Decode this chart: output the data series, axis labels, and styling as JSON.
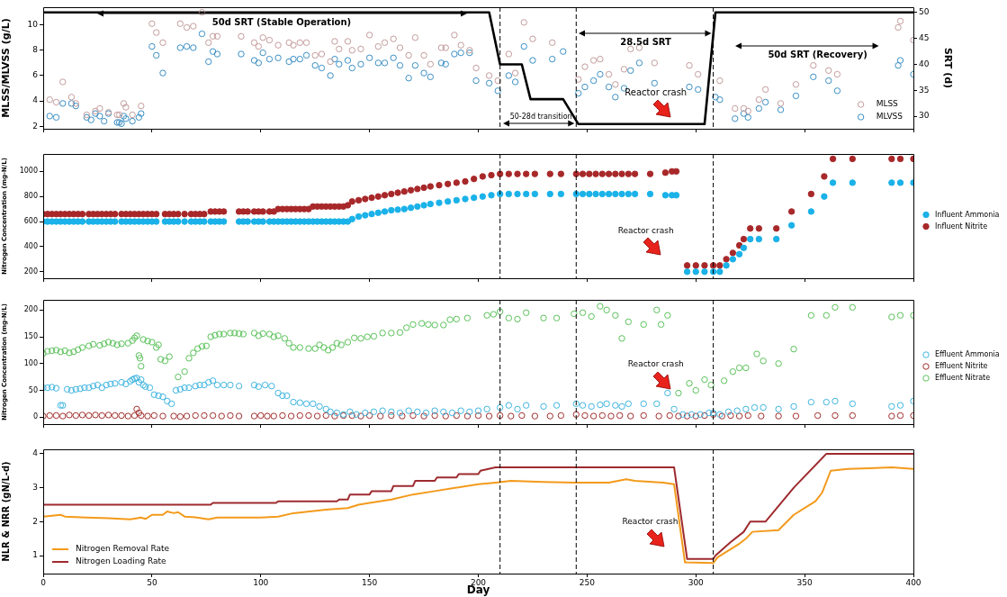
{
  "chart_data": [
    {
      "type": "scatter",
      "ylabel": "MLSS/MLVSS (g/L)",
      "y2label": "SRT (d)",
      "xlim": [
        0,
        400
      ],
      "xticks": [
        0,
        50,
        100,
        150,
        200,
        250,
        300,
        350,
        400
      ],
      "ylim": [
        1.8,
        11.4
      ],
      "yticks": [
        2,
        4,
        6,
        8,
        10
      ],
      "y2lim": [
        27.6,
        51
      ],
      "y2ticks": [
        30,
        35,
        40,
        45,
        50
      ],
      "tick_labels": "y",
      "legend": "bottom right",
      "ref_lines": [
        {
          "axis": "x",
          "value": 210,
          "color": "#000000",
          "line_style": "dashed"
        },
        {
          "axis": "x",
          "value": 245,
          "color": "#000000",
          "line_style": "dashed"
        },
        {
          "axis": "x",
          "value": 308,
          "color": "#000000",
          "line_style": "dashed"
        }
      ],
      "annotations": [
        "50d SRT (Stable Operation)",
        "50-28d transition",
        "28.5d SRT",
        "50d SRT (Recovery)",
        "Reactor crash"
      ],
      "series": [
        {
          "name": "MLSS",
          "marker": "circle",
          "color": "#c49c9c",
          "x": [
            3,
            6,
            9,
            13,
            15,
            20,
            24,
            26,
            30,
            34,
            35,
            37,
            38,
            41,
            45,
            50,
            52,
            55,
            63,
            66,
            69,
            73,
            76,
            78,
            80,
            91,
            97,
            99,
            101,
            104,
            108,
            113,
            115,
            118,
            121,
            125,
            128,
            132,
            134,
            136,
            140,
            142,
            146,
            150,
            154,
            157,
            161,
            164,
            168,
            171,
            175,
            178,
            183,
            185,
            189,
            192,
            196,
            199,
            205,
            209,
            214,
            217,
            221,
            225,
            234,
            246,
            249,
            253,
            256,
            260,
            263,
            267,
            270,
            274,
            281,
            297,
            301,
            311,
            318,
            322,
            324,
            329,
            332,
            339,
            346,
            354,
            361,
            365,
            393,
            394,
            400
          ],
          "values": [
            4.1,
            3.9,
            5.5,
            4.3,
            3.8,
            2.9,
            3.2,
            3.4,
            3.1,
            2.9,
            2.9,
            3.8,
            3.5,
            2.9,
            3.6,
            10.1,
            9.4,
            8.6,
            10.1,
            9.8,
            9.9,
            11.0,
            8.6,
            9.1,
            9.1,
            9.1,
            8.6,
            8.3,
            9.0,
            8.8,
            8.4,
            8.6,
            8.4,
            8.6,
            8.6,
            7.6,
            7.7,
            7.1,
            8.7,
            8.1,
            8.7,
            8.0,
            8.1,
            9.2,
            8.3,
            8.6,
            8.9,
            8.2,
            7.6,
            9.0,
            7.6,
            6.9,
            8.2,
            8.2,
            9.2,
            8.4,
            8.0,
            6.6,
            6.0,
            5.6,
            7.7,
            6.2,
            10.2,
            8.9,
            8.6,
            5.7,
            6.7,
            7.2,
            7.3,
            6.1,
            5.3,
            6.5,
            8.1,
            8.2,
            7.0,
            6.8,
            6.1,
            5.6,
            3.4,
            3.4,
            3.2,
            4.1,
            4.9,
            3.8,
            5.3,
            6.8,
            6.4,
            6.1,
            9.8,
            10.3,
            8.8
          ]
        },
        {
          "name": "MLVSS",
          "marker": "circle",
          "color": "#3b8fc4",
          "x": [
            3,
            6,
            9,
            13,
            15,
            20,
            22,
            24,
            26,
            28,
            30,
            34,
            35,
            36,
            37,
            38,
            41,
            44,
            45,
            50,
            52,
            55,
            63,
            66,
            69,
            73,
            76,
            78,
            80,
            91,
            97,
            99,
            101,
            104,
            108,
            113,
            115,
            118,
            121,
            125,
            128,
            132,
            134,
            136,
            140,
            142,
            146,
            150,
            154,
            157,
            161,
            164,
            168,
            171,
            175,
            178,
            183,
            185,
            189,
            192,
            196,
            199,
            205,
            209,
            214,
            217,
            221,
            225,
            234,
            239,
            246,
            249,
            253,
            256,
            260,
            263,
            267,
            270,
            274,
            281,
            297,
            301,
            309,
            311,
            318,
            322,
            324,
            329,
            332,
            339,
            346,
            354,
            361,
            365,
            393,
            394,
            400
          ],
          "values": [
            2.8,
            2.7,
            3.8,
            3.8,
            3.6,
            2.7,
            2.5,
            3.0,
            2.8,
            2.4,
            3.0,
            2.3,
            2.3,
            2.2,
            2.8,
            2.6,
            2.4,
            2.7,
            3.0,
            8.3,
            7.6,
            6.2,
            8.2,
            8.3,
            8.2,
            9.3,
            7.1,
            7.9,
            7.7,
            7.7,
            7.2,
            7.0,
            7.8,
            7.3,
            7.4,
            7.1,
            7.3,
            7.3,
            7.6,
            6.8,
            6.6,
            6.0,
            7.3,
            6.9,
            7.2,
            6.6,
            6.9,
            7.4,
            7.0,
            7.0,
            7.4,
            6.8,
            5.8,
            6.8,
            6.2,
            5.9,
            7.0,
            6.9,
            7.7,
            7.8,
            7.8,
            5.6,
            5.4,
            4.8,
            6.0,
            5.5,
            8.3,
            7.2,
            7.3,
            7.9,
            4.6,
            5.1,
            5.6,
            6.1,
            5.1,
            4.3,
            5.0,
            6.4,
            7.0,
            5.4,
            5.1,
            4.9,
            4.3,
            4.1,
            2.6,
            3.0,
            2.7,
            3.4,
            3.9,
            3.3,
            4.4,
            5.9,
            5.6,
            4.8,
            6.8,
            7.2,
            6.1
          ]
        },
        {
          "type": "line",
          "axis": "y2",
          "color": "#000000",
          "x": [
            0,
            205,
            210,
            220,
            224,
            239,
            246,
            304,
            309,
            400
          ],
          "values": [
            50,
            50,
            40,
            40,
            33.3,
            33.3,
            28.5,
            28.5,
            50,
            50
          ]
        }
      ]
    },
    {
      "type": "scatter",
      "ylabel": "Nitrogen Concentration (mg-N/L)",
      "xlim": [
        0,
        400
      ],
      "xticks": [
        0,
        50,
        100,
        150,
        200,
        250,
        300,
        350,
        400
      ],
      "ylim": [
        148,
        1139
      ],
      "yticks": [
        200,
        400,
        600,
        800,
        1000
      ],
      "tick_labels": "y",
      "legend": "right",
      "ref_lines": [
        {
          "axis": "x",
          "value": 210,
          "color": "#000000",
          "line_style": "dashed"
        },
        {
          "axis": "x",
          "value": 245,
          "color": "#000000",
          "line_style": "dashed"
        },
        {
          "axis": "x",
          "value": 308,
          "color": "#000000",
          "line_style": "dashed"
        }
      ],
      "annotations": [
        "Reactor crash"
      ],
      "series": [
        {
          "name": "Influent Ammonia",
          "marker": "circle",
          "color": "#1ab2e8",
          "x": [
            0,
            2,
            4,
            6,
            8,
            10,
            12,
            14,
            16,
            18,
            21,
            23,
            25,
            27,
            29,
            31,
            33,
            36,
            38,
            40,
            42,
            44,
            46,
            48,
            50,
            52,
            56,
            58,
            60,
            62,
            65,
            68,
            70,
            72,
            74,
            77,
            79,
            81,
            83,
            90,
            92,
            94,
            97,
            99,
            101,
            104,
            106,
            108,
            110,
            112,
            114,
            116,
            118,
            120,
            122,
            124,
            126,
            128,
            130,
            132,
            134,
            136,
            138,
            140,
            142,
            145,
            148,
            151,
            154,
            157,
            160,
            163,
            166,
            169,
            172,
            175,
            178,
            182,
            186,
            190,
            194,
            198,
            202,
            206,
            210,
            214,
            218,
            222,
            226,
            233,
            238,
            245,
            248,
            251,
            254,
            257,
            260,
            263,
            266,
            269,
            272,
            279,
            286,
            289,
            291,
            296,
            300,
            304,
            308,
            311,
            314,
            317,
            320,
            322,
            325,
            329,
            337,
            344,
            353,
            359,
            363,
            372,
            390,
            394,
            400
          ],
          "values": [
            600,
            600,
            600,
            600,
            600,
            600,
            600,
            600,
            600,
            600,
            600,
            600,
            600,
            600,
            600,
            600,
            600,
            600,
            600,
            600,
            600,
            600,
            600,
            600,
            600,
            600,
            600,
            600,
            600,
            600,
            600,
            600,
            600,
            600,
            600,
            600,
            600,
            600,
            600,
            600,
            600,
            600,
            600,
            600,
            600,
            600,
            600,
            600,
            600,
            600,
            600,
            600,
            600,
            600,
            600,
            600,
            600,
            600,
            600,
            600,
            600,
            600,
            600,
            600,
            620,
            640,
            650,
            660,
            670,
            680,
            690,
            695,
            700,
            710,
            720,
            730,
            740,
            750,
            760,
            770,
            780,
            790,
            800,
            810,
            820,
            820,
            820,
            820,
            820,
            820,
            820,
            820,
            820,
            820,
            820,
            820,
            820,
            820,
            820,
            820,
            820,
            820,
            810,
            810,
            810,
            200,
            200,
            200,
            200,
            200,
            250,
            300,
            340,
            390,
            460,
            460,
            460,
            570,
            680,
            800,
            910,
            910,
            910,
            910,
            910
          ]
        },
        {
          "name": "Influent Nitrite",
          "marker": "circle",
          "color": "#a8282a",
          "x": [
            0,
            2,
            4,
            6,
            8,
            10,
            12,
            14,
            16,
            18,
            21,
            23,
            25,
            27,
            29,
            31,
            33,
            36,
            38,
            40,
            42,
            44,
            46,
            48,
            50,
            52,
            56,
            58,
            60,
            62,
            65,
            68,
            70,
            72,
            74,
            77,
            79,
            81,
            83,
            90,
            92,
            94,
            97,
            99,
            101,
            104,
            106,
            108,
            110,
            112,
            114,
            116,
            118,
            120,
            122,
            124,
            126,
            128,
            130,
            132,
            134,
            136,
            138,
            140,
            142,
            145,
            148,
            151,
            154,
            157,
            160,
            163,
            166,
            169,
            172,
            175,
            178,
            182,
            186,
            190,
            194,
            198,
            202,
            206,
            210,
            214,
            218,
            222,
            226,
            233,
            238,
            245,
            248,
            251,
            254,
            257,
            260,
            263,
            266,
            269,
            272,
            279,
            286,
            289,
            291,
            296,
            300,
            304,
            308,
            311,
            314,
            317,
            320,
            322,
            325,
            329,
            337,
            344,
            353,
            359,
            363,
            372,
            390,
            394,
            400
          ],
          "values": [
            660,
            660,
            660,
            660,
            660,
            660,
            660,
            660,
            660,
            660,
            660,
            660,
            660,
            660,
            660,
            660,
            660,
            660,
            660,
            660,
            660,
            660,
            660,
            660,
            660,
            660,
            660,
            660,
            660,
            660,
            660,
            660,
            660,
            660,
            660,
            680,
            680,
            680,
            680,
            680,
            680,
            680,
            680,
            680,
            680,
            680,
            680,
            700,
            700,
            700,
            700,
            700,
            700,
            700,
            700,
            720,
            720,
            720,
            720,
            720,
            720,
            720,
            720,
            730,
            760,
            770,
            780,
            790,
            800,
            810,
            820,
            830,
            840,
            850,
            860,
            870,
            880,
            890,
            900,
            910,
            920,
            940,
            960,
            970,
            980,
            980,
            980,
            980,
            980,
            980,
            980,
            980,
            980,
            980,
            980,
            980,
            980,
            980,
            980,
            980,
            980,
            980,
            990,
            1000,
            1000,
            250,
            250,
            250,
            250,
            250,
            300,
            350,
            410,
            460,
            545,
            545,
            545,
            680,
            820,
            960,
            1100,
            1100,
            1100,
            1100,
            1100
          ]
        }
      ]
    },
    {
      "type": "scatter",
      "ylabel": "Nitrogen Concentration (mg-N/L)",
      "xlim": [
        0,
        400
      ],
      "xticks": [
        0,
        50,
        100,
        150,
        200,
        250,
        300,
        350,
        400
      ],
      "ylim": [
        -13,
        219
      ],
      "yticks": [
        0,
        50,
        100,
        150,
        200
      ],
      "tick_labels": "y",
      "legend": "right",
      "ref_lines": [
        {
          "axis": "x",
          "value": 210,
          "color": "#000000",
          "line_style": "dashed"
        },
        {
          "axis": "x",
          "value": 245,
          "color": "#000000",
          "line_style": "dashed"
        },
        {
          "axis": "x",
          "value": 308,
          "color": "#000000",
          "line_style": "dashed"
        }
      ],
      "annotations": [
        "Reactor crash"
      ],
      "series": [
        {
          "name": "Effluent Ammonia",
          "marker": "circle",
          "color": "#3fb5e0",
          "x": [
            0,
            2,
            4,
            6,
            8,
            9,
            11,
            13,
            15,
            17,
            19,
            21,
            23,
            25,
            27,
            29,
            31,
            33,
            36,
            38,
            40,
            41,
            42,
            43,
            44,
            45,
            46,
            47,
            49,
            51,
            53,
            55,
            57,
            59,
            61,
            63,
            65,
            67,
            70,
            72,
            74,
            76,
            78,
            80,
            83,
            86,
            90,
            97,
            99,
            102,
            105,
            108,
            110,
            112,
            115,
            118,
            121,
            124,
            127,
            130,
            132,
            135,
            138,
            141,
            144,
            148,
            152,
            156,
            160,
            164,
            168,
            172,
            176,
            180,
            184,
            188,
            192,
            196,
            200,
            204,
            210,
            214,
            218,
            222,
            230,
            236,
            245,
            248,
            252,
            256,
            259,
            263,
            266,
            269,
            276,
            282,
            287,
            290,
            294,
            298,
            302,
            306,
            308,
            311,
            315,
            319,
            323,
            327,
            331,
            338,
            345,
            353,
            360,
            364,
            372,
            390,
            394,
            400
          ],
          "values": [
            55,
            55,
            56,
            54,
            22,
            22,
            52,
            50,
            52,
            53,
            55,
            55,
            58,
            60,
            55,
            60,
            62,
            63,
            65,
            62,
            67,
            70,
            72,
            73,
            65,
            70,
            60,
            57,
            55,
            42,
            40,
            38,
            30,
            25,
            50,
            52,
            55,
            55,
            58,
            60,
            60,
            65,
            68,
            60,
            60,
            60,
            58,
            60,
            57,
            60,
            58,
            45,
            40,
            40,
            28,
            27,
            25,
            25,
            20,
            15,
            10,
            8,
            5,
            10,
            5,
            8,
            10,
            12,
            10,
            8,
            12,
            10,
            8,
            12,
            10,
            8,
            12,
            10,
            12,
            15,
            18,
            22,
            15,
            22,
            20,
            22,
            25,
            22,
            20,
            23,
            25,
            22,
            20,
            25,
            25,
            25,
            45,
            15,
            5,
            5,
            5,
            8,
            8,
            5,
            10,
            12,
            15,
            18,
            18,
            15,
            20,
            28,
            28,
            30,
            25,
            20,
            22,
            30
          ]
        },
        {
          "name": "Effluent Nitrite",
          "marker": "circle",
          "color": "#a0302e",
          "x": [
            0,
            3,
            6,
            9,
            12,
            15,
            18,
            21,
            24,
            27,
            30,
            33,
            36,
            39,
            42,
            43,
            44,
            45,
            48,
            51,
            55,
            60,
            63,
            66,
            70,
            74,
            78,
            82,
            86,
            90,
            97,
            100,
            103,
            106,
            110,
            114,
            118,
            122,
            126,
            130,
            134,
            138,
            142,
            146,
            150,
            155,
            160,
            165,
            170,
            175,
            180,
            185,
            190,
            195,
            200,
            205,
            210,
            215,
            220,
            226,
            233,
            238,
            245,
            249,
            253,
            257,
            261,
            265,
            270,
            276,
            283,
            288,
            292,
            296,
            300,
            304,
            308,
            312,
            316,
            320,
            324,
            330,
            338,
            346,
            356,
            364,
            372,
            390,
            394,
            400
          ],
          "values": [
            2,
            3,
            3,
            2,
            4,
            3,
            4,
            3,
            4,
            3,
            4,
            3,
            3,
            2,
            3,
            15,
            8,
            3,
            2,
            3,
            2,
            2,
            1,
            2,
            3,
            3,
            3,
            2,
            3,
            2,
            2,
            3,
            2,
            2,
            3,
            2,
            3,
            3,
            2,
            3,
            2,
            3,
            3,
            2,
            3,
            2,
            3,
            2,
            3,
            2,
            3,
            2,
            3,
            2,
            3,
            2,
            3,
            2,
            3,
            2,
            2,
            3,
            5,
            3,
            2,
            3,
            2,
            3,
            2,
            3,
            2,
            3,
            2,
            2,
            2,
            3,
            5,
            2,
            3,
            2,
            3,
            2,
            2,
            2,
            3,
            3,
            3,
            2,
            3,
            3
          ]
        },
        {
          "name": "Effluent Nitrate",
          "marker": "circle",
          "color": "#5bc25b",
          "x": [
            0,
            2,
            4,
            6,
            8,
            10,
            12,
            14,
            16,
            18,
            21,
            23,
            26,
            28,
            30,
            32,
            34,
            36,
            39,
            41,
            42,
            43,
            44,
            44.5,
            45,
            46,
            48,
            50,
            52,
            53,
            54,
            56,
            58,
            62,
            65,
            67,
            69,
            71,
            73,
            75,
            77,
            79,
            81,
            83,
            86,
            88,
            90,
            92,
            97,
            99,
            101,
            104,
            106,
            108,
            111,
            113,
            115,
            118,
            122,
            125,
            127,
            129,
            131,
            133,
            135,
            137,
            140,
            143,
            146,
            149,
            152,
            156,
            160,
            164,
            167,
            170,
            174,
            177,
            180,
            184,
            187,
            190,
            195,
            204,
            207,
            210,
            214,
            218,
            222,
            230,
            236,
            244,
            248,
            252,
            256,
            259,
            263,
            266,
            269,
            276,
            282,
            284,
            287,
            292,
            297,
            300,
            304,
            307,
            313,
            317,
            320,
            323,
            328,
            331,
            338,
            345,
            353,
            360,
            364,
            372,
            390,
            394,
            400
          ],
          "values": [
            119,
            123,
            124,
            125,
            122,
            124,
            120,
            122,
            126,
            130,
            133,
            136,
            134,
            137,
            140,
            138,
            135,
            137,
            138,
            143,
            148,
            152,
            115,
            110,
            95,
            145,
            142,
            140,
            130,
            135,
            108,
            105,
            113,
            75,
            85,
            110,
            120,
            128,
            132,
            133,
            150,
            153,
            155,
            155,
            157,
            157,
            156,
            155,
            157,
            152,
            156,
            155,
            150,
            152,
            147,
            138,
            130,
            130,
            128,
            128,
            135,
            130,
            125,
            130,
            138,
            135,
            140,
            148,
            147,
            150,
            151,
            157,
            157,
            158,
            167,
            173,
            175,
            173,
            172,
            172,
            182,
            183,
            185,
            190,
            192,
            197,
            185,
            183,
            195,
            185,
            185,
            193,
            195,
            188,
            207,
            200,
            190,
            147,
            178,
            173,
            200,
            173,
            190,
            45,
            63,
            50,
            70,
            60,
            68,
            85,
            92,
            92,
            118,
            105,
            100,
            127,
            190,
            190,
            205,
            205,
            187,
            190,
            190
          ]
        }
      ]
    },
    {
      "type": "line",
      "xlabel": "Day",
      "ylabel": "NLR & NRR (gN/L-d)",
      "xlim": [
        0,
        400
      ],
      "xticks": [
        0,
        50,
        100,
        150,
        200,
        250,
        300,
        350,
        400
      ],
      "ylim": [
        0.47,
        4.13
      ],
      "yticks": [
        1,
        2,
        3,
        4
      ],
      "legend": "bottom left",
      "ref_lines": [
        {
          "axis": "x",
          "value": 210,
          "color": "#000000",
          "line_style": "dashed"
        },
        {
          "axis": "x",
          "value": 245,
          "color": "#000000",
          "line_style": "dashed"
        },
        {
          "axis": "x",
          "value": 308,
          "color": "#000000",
          "line_style": "dashed"
        }
      ],
      "annotations": [
        "Reactor crash"
      ],
      "series": [
        {
          "name": "Nitrogen Removal Rate",
          "color": "#f39a1b",
          "x": [
            0,
            8,
            10,
            20,
            30,
            40,
            45,
            47,
            50,
            55,
            57,
            60,
            62,
            65,
            70,
            76,
            80,
            100,
            108,
            115,
            130,
            140,
            145,
            150,
            160,
            170,
            180,
            190,
            200,
            208,
            215,
            230,
            245,
            260,
            268,
            272,
            285,
            290,
            295,
            308,
            310,
            320,
            323,
            326,
            338,
            345,
            355,
            358,
            362,
            370,
            380,
            390,
            400
          ],
          "values": [
            2.15,
            2.2,
            2.15,
            2.12,
            2.1,
            2.07,
            2.12,
            2.08,
            2.2,
            2.2,
            2.3,
            2.25,
            2.28,
            2.15,
            2.13,
            2.07,
            2.12,
            2.12,
            2.15,
            2.25,
            2.35,
            2.4,
            2.5,
            2.55,
            2.65,
            2.8,
            2.9,
            3.0,
            3.1,
            3.15,
            3.2,
            3.17,
            3.15,
            3.15,
            3.25,
            3.2,
            3.15,
            3.1,
            0.8,
            0.78,
            0.95,
            1.35,
            1.5,
            1.7,
            1.75,
            2.2,
            2.6,
            2.85,
            3.5,
            3.55,
            3.57,
            3.6,
            3.55
          ]
        },
        {
          "name": "Nitrogen Loading Rate",
          "color": "#9e2b2f",
          "x": [
            0,
            77,
            78,
            107,
            108,
            135,
            136,
            140,
            141,
            150,
            151,
            160,
            161,
            170,
            171,
            180,
            181,
            190,
            191,
            200,
            201,
            208,
            290,
            296,
            308,
            309,
            316,
            322,
            325,
            332,
            345,
            360,
            400
          ],
          "values": [
            2.5,
            2.5,
            2.55,
            2.55,
            2.6,
            2.6,
            2.65,
            2.65,
            2.8,
            2.8,
            2.9,
            2.9,
            3.05,
            3.05,
            3.2,
            3.2,
            3.3,
            3.3,
            3.4,
            3.4,
            3.5,
            3.6,
            3.6,
            0.9,
            0.9,
            1.0,
            1.4,
            1.7,
            2.0,
            2.0,
            3.0,
            4.0,
            4.0
          ]
        }
      ]
    }
  ]
}
